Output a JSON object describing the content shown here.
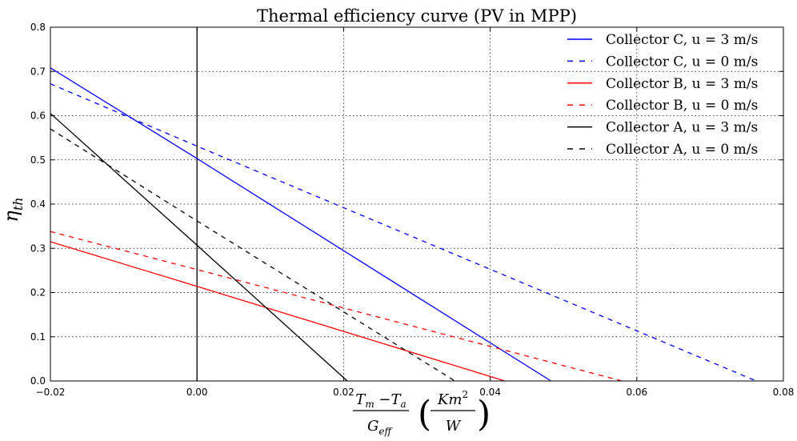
{
  "chart_data": {
    "type": "line",
    "title": "Thermal efficiency curve (PV in MPP)",
    "ylabel_symbol": "η",
    "ylabel_subscript": "th",
    "xlabel": {
      "numerator_main": "T",
      "numerator_sub_1": "m",
      "numerator_minus": " −",
      "numerator_main_2": "T",
      "numerator_sub_2": "a",
      "denominator_main": "G",
      "denominator_sub": "eff",
      "unit_numerator": "Km",
      "unit_sup": "2",
      "unit_denominator": "W"
    },
    "xlim": [
      -0.02,
      0.08
    ],
    "ylim": [
      0.0,
      0.8
    ],
    "xticks": [
      -0.02,
      0.0,
      0.02,
      0.04,
      0.06,
      0.08
    ],
    "xtick_labels": [
      "−0.02",
      "0.00",
      "0.02",
      "0.04",
      "0.06",
      "0.08"
    ],
    "yticks": [
      0.0,
      0.1,
      0.2,
      0.3,
      0.4,
      0.5,
      0.6,
      0.7,
      0.8
    ],
    "ytick_labels": [
      "0.0",
      "0.1",
      "0.2",
      "0.3",
      "0.4",
      "0.5",
      "0.6",
      "0.7",
      "0.8"
    ],
    "grid": true,
    "legend_position": "top-right",
    "series": [
      {
        "name": "Collector C, u = 3 m/s",
        "color": "#0000ff",
        "dash": "solid",
        "x": [
          -0.02,
          0.0,
          0.0483
        ],
        "y": [
          0.708,
          0.503,
          0.0
        ]
      },
      {
        "name": "Collector C, u = 0 m/s",
        "color": "#0000ff",
        "dash": "dashed",
        "x": [
          -0.02,
          0.0,
          0.0763
        ],
        "y": [
          0.672,
          0.531,
          0.0
        ]
      },
      {
        "name": "Collector B, u = 3 m/s",
        "color": "#ff0000",
        "dash": "solid",
        "x": [
          -0.02,
          0.0,
          0.042
        ],
        "y": [
          0.315,
          0.214,
          0.0
        ]
      },
      {
        "name": "Collector B, u = 0 m/s",
        "color": "#ff0000",
        "dash": "dashed",
        "x": [
          -0.02,
          0.0,
          0.058
        ],
        "y": [
          0.338,
          0.252,
          0.0
        ]
      },
      {
        "name": "Collector A, u = 3 m/s",
        "color": "#000000",
        "dash": "solid",
        "x": [
          -0.02,
          0.0,
          0.0205
        ],
        "y": [
          0.605,
          0.307,
          0.0
        ]
      },
      {
        "name": "Collector A, u = 0 m/s",
        "color": "#000000",
        "dash": "dashed",
        "x": [
          -0.02,
          0.0,
          0.0352
        ],
        "y": [
          0.57,
          0.362,
          0.0
        ]
      }
    ]
  }
}
